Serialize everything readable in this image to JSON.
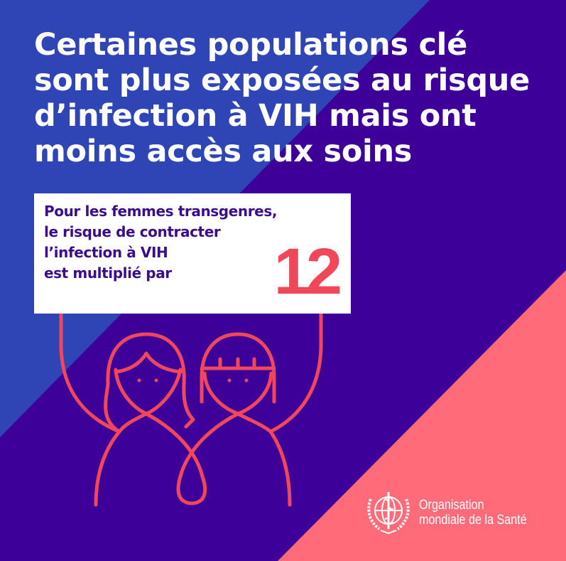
{
  "colors": {
    "blue": "#2f45b5",
    "purple": "#3d0099",
    "pink": "#ff6b78",
    "accent_red": "#f0475a",
    "card_text": "#3b0d8c"
  },
  "title": {
    "lines": [
      "Certaines populations clé",
      "sont plus exposées au risque",
      "d’infection à VIH mais ont",
      "moins accès aux soins"
    ]
  },
  "card": {
    "lines": [
      "Pour les femmes transgenres,",
      "le risque de contracter",
      "l’infection à VIH",
      "est multiplié par"
    ],
    "number": "12"
  },
  "illustration": {
    "icon": "two-women-holding-sign-with-ribbon"
  },
  "logo": {
    "icon": "who-emblem",
    "lines": [
      "Organisation",
      "mondiale de la Santé"
    ]
  }
}
